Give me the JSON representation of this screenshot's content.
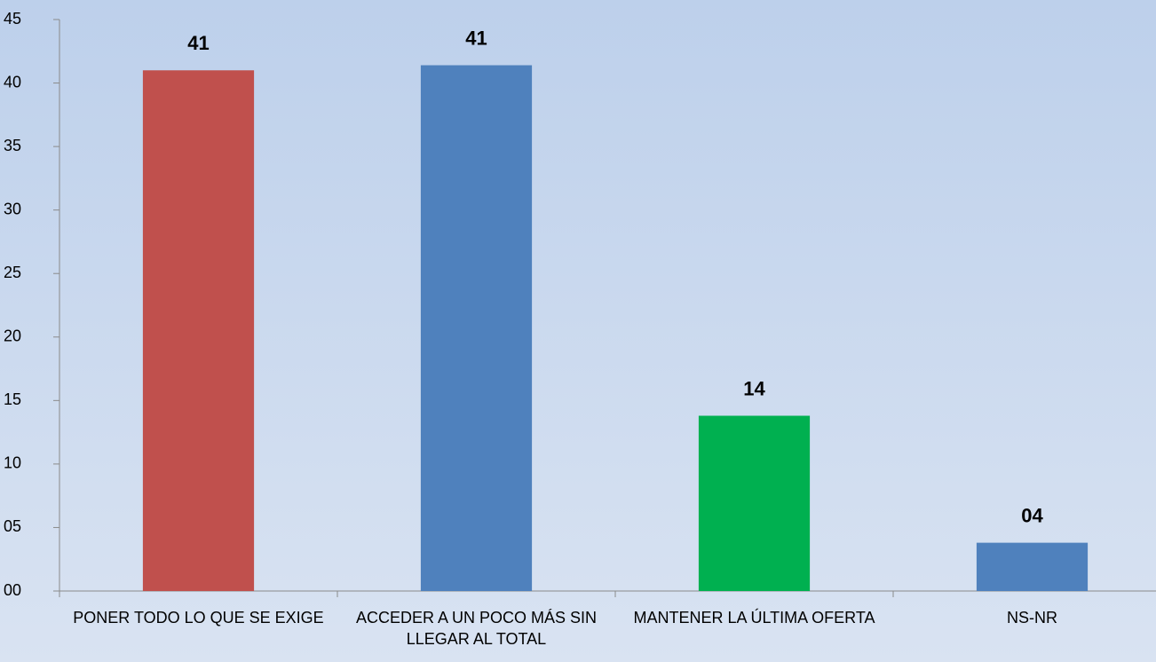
{
  "chart_data": {
    "type": "bar",
    "categories": [
      "PONER TODO LO QUE SE EXIGE",
      "ACCEDER A UN POCO MÁS SIN LLEGAR AL TOTAL",
      "MANTENER LA ÚLTIMA OFERTA",
      "NS-NR"
    ],
    "values": [
      41.0,
      41.4,
      13.8,
      3.8
    ],
    "value_labels": [
      "41",
      "41",
      "14",
      "04"
    ],
    "colors": [
      "#c0504d",
      "#4f81bd",
      "#00b050",
      "#4f81bd"
    ],
    "ylim": [
      0,
      45
    ],
    "yticks": [
      {
        "value": 0,
        "label": "00"
      },
      {
        "value": 5,
        "label": "05"
      },
      10,
      15,
      20,
      25,
      30,
      35,
      40,
      45
    ],
    "grid": false
  }
}
